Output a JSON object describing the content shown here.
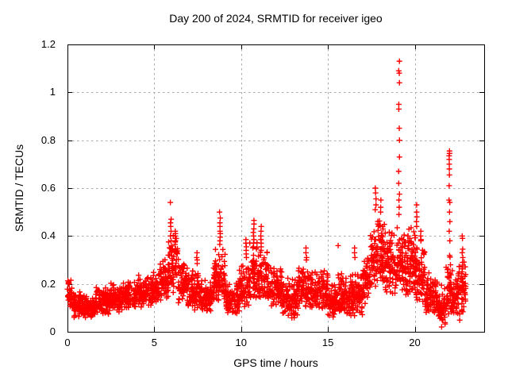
{
  "chart_data": {
    "type": "scatter",
    "title": "Day 200 of 2024, SRMTID for receiver igeo",
    "xlabel": "GPS time / hours",
    "ylabel": "SRMTID / TECUs",
    "xlim": [
      0,
      24
    ],
    "ylim": [
      0,
      1.2
    ],
    "xticks": [
      0,
      5,
      10,
      15,
      20
    ],
    "xtick_labels": [
      "0",
      "5",
      "10",
      "15",
      "20"
    ],
    "yticks": [
      0,
      0.2,
      0.4,
      0.6,
      0.8,
      1,
      1.2
    ],
    "ytick_labels": [
      "0",
      "0.2",
      "0.4",
      "0.6",
      "0.8",
      "1",
      "1.2"
    ],
    "grid": true,
    "legend": "none",
    "marker": {
      "shape": "plus",
      "color": "#ff0000",
      "size": 7
    },
    "colors": {
      "axis": "#000000",
      "grid": "#a8a8a8",
      "text": "#000000",
      "background": "#ffffff"
    },
    "seed": 20240200,
    "sample_interval_hours": 0.008333,
    "band_segments": [
      {
        "x0": 0.0,
        "x1": 0.3,
        "lo": 0.1,
        "hi": 0.23,
        "n": 36
      },
      {
        "x0": 0.3,
        "x1": 0.9,
        "lo": 0.06,
        "hi": 0.18,
        "n": 72
      },
      {
        "x0": 0.9,
        "x1": 1.6,
        "lo": 0.05,
        "hi": 0.16,
        "n": 84
      },
      {
        "x0": 1.6,
        "x1": 2.4,
        "lo": 0.07,
        "hi": 0.19,
        "n": 96
      },
      {
        "x0": 2.4,
        "x1": 3.2,
        "lo": 0.08,
        "hi": 0.21,
        "n": 96
      },
      {
        "x0": 3.2,
        "x1": 4.0,
        "lo": 0.09,
        "hi": 0.22,
        "n": 96
      },
      {
        "x0": 4.0,
        "x1": 4.7,
        "lo": 0.1,
        "hi": 0.24,
        "n": 84
      },
      {
        "x0": 4.7,
        "x1": 5.3,
        "lo": 0.11,
        "hi": 0.26,
        "n": 72
      },
      {
        "x0": 5.3,
        "x1": 5.8,
        "lo": 0.13,
        "hi": 0.32,
        "n": 60
      },
      {
        "x0": 5.8,
        "x1": 6.35,
        "lo": 0.16,
        "hi": 0.43,
        "n": 66
      },
      {
        "x0": 6.35,
        "x1": 6.9,
        "lo": 0.12,
        "hi": 0.33,
        "n": 64
      },
      {
        "x0": 6.9,
        "x1": 7.6,
        "lo": 0.09,
        "hi": 0.27,
        "n": 80
      },
      {
        "x0": 7.6,
        "x1": 8.4,
        "lo": 0.08,
        "hi": 0.22,
        "n": 92
      },
      {
        "x0": 8.4,
        "x1": 9.1,
        "lo": 0.11,
        "hi": 0.36,
        "n": 84
      },
      {
        "x0": 9.1,
        "x1": 9.9,
        "lo": 0.07,
        "hi": 0.21,
        "n": 92
      },
      {
        "x0": 9.9,
        "x1": 10.5,
        "lo": 0.1,
        "hi": 0.3,
        "n": 70
      },
      {
        "x0": 10.5,
        "x1": 11.05,
        "lo": 0.13,
        "hi": 0.38,
        "n": 66
      },
      {
        "x0": 11.05,
        "x1": 11.6,
        "lo": 0.13,
        "hi": 0.38,
        "n": 66
      },
      {
        "x0": 11.6,
        "x1": 12.4,
        "lo": 0.1,
        "hi": 0.28,
        "n": 92
      },
      {
        "x0": 12.4,
        "x1": 13.3,
        "lo": 0.05,
        "hi": 0.24,
        "n": 102
      },
      {
        "x0": 13.3,
        "x1": 14.2,
        "lo": 0.09,
        "hi": 0.3,
        "n": 102
      },
      {
        "x0": 14.2,
        "x1": 15.0,
        "lo": 0.09,
        "hi": 0.27,
        "n": 92
      },
      {
        "x0": 15.0,
        "x1": 15.5,
        "lo": 0.05,
        "hi": 0.21,
        "n": 58
      },
      {
        "x0": 15.5,
        "x1": 16.2,
        "lo": 0.07,
        "hi": 0.25,
        "n": 80
      },
      {
        "x0": 16.2,
        "x1": 17.0,
        "lo": 0.06,
        "hi": 0.27,
        "n": 92
      },
      {
        "x0": 17.0,
        "x1": 17.45,
        "lo": 0.11,
        "hi": 0.33,
        "n": 54
      },
      {
        "x0": 17.45,
        "x1": 18.3,
        "lo": 0.17,
        "hi": 0.5,
        "n": 112
      },
      {
        "x0": 18.3,
        "x1": 18.9,
        "lo": 0.15,
        "hi": 0.44,
        "n": 76
      },
      {
        "x0": 18.9,
        "x1": 19.35,
        "lo": 0.17,
        "hi": 0.46,
        "n": 60
      },
      {
        "x0": 19.35,
        "x1": 20.05,
        "lo": 0.15,
        "hi": 0.45,
        "n": 92
      },
      {
        "x0": 20.05,
        "x1": 20.6,
        "lo": 0.12,
        "hi": 0.4,
        "n": 66
      },
      {
        "x0": 20.6,
        "x1": 21.3,
        "lo": 0.06,
        "hi": 0.26,
        "n": 80
      },
      {
        "x0": 21.3,
        "x1": 21.8,
        "lo": 0.02,
        "hi": 0.2,
        "n": 56
      },
      {
        "x0": 21.8,
        "x1": 22.15,
        "lo": 0.06,
        "hi": 0.32,
        "n": 46
      },
      {
        "x0": 22.15,
        "x1": 22.6,
        "lo": 0.04,
        "hi": 0.28,
        "n": 52
      },
      {
        "x0": 22.6,
        "x1": 22.95,
        "lo": 0.08,
        "hi": 0.3,
        "n": 42
      }
    ],
    "spike_columns": [
      {
        "x": 5.95,
        "ys": [
          0.54,
          0.47,
          0.455,
          0.44,
          0.42,
          0.4,
          0.38
        ]
      },
      {
        "x": 6.2,
        "ys": [
          0.42,
          0.41,
          0.4,
          0.39,
          0.38,
          0.375,
          0.365
        ]
      },
      {
        "x": 7.45,
        "ys": [
          0.33,
          0.31,
          0.3,
          0.285
        ]
      },
      {
        "x": 8.78,
        "ys": [
          0.5,
          0.475,
          0.455,
          0.44,
          0.42,
          0.41,
          0.395,
          0.38,
          0.365
        ]
      },
      {
        "x": 10.3,
        "ys": [
          0.385,
          0.37,
          0.355,
          0.34,
          0.325,
          0.31
        ]
      },
      {
        "x": 10.72,
        "ys": [
          0.465,
          0.45,
          0.43,
          0.415,
          0.4,
          0.385,
          0.37,
          0.355
        ]
      },
      {
        "x": 11.15,
        "ys": [
          0.44,
          0.42,
          0.4,
          0.385,
          0.37,
          0.355,
          0.34
        ]
      },
      {
        "x": 13.75,
        "ys": [
          0.35,
          0.33,
          0.31,
          0.3
        ]
      },
      {
        "x": 15.6,
        "ys": [
          0.36
        ]
      },
      {
        "x": 16.55,
        "ys": [
          0.35,
          0.33,
          0.31
        ]
      },
      {
        "x": 17.75,
        "ys": [
          0.6,
          0.58,
          0.555,
          0.53,
          0.51
        ]
      },
      {
        "x": 18.05,
        "ys": [
          0.55,
          0.52,
          0.5
        ]
      },
      {
        "x": 19.1,
        "ys": [
          1.13,
          1.09,
          1.08,
          1.04,
          0.95,
          0.93,
          0.85,
          0.8,
          0.73,
          0.67,
          0.62,
          0.575,
          0.55,
          0.52,
          0.49
        ]
      },
      {
        "x": 19.6,
        "ys": [
          0.4,
          0.38
        ]
      },
      {
        "x": 20.1,
        "ys": [
          0.53,
          0.5,
          0.48,
          0.46,
          0.44
        ]
      },
      {
        "x": 20.35,
        "ys": [
          0.42,
          0.4,
          0.38
        ]
      },
      {
        "x": 22.0,
        "ys": [
          0.755,
          0.745,
          0.735,
          0.72,
          0.7,
          0.68,
          0.655,
          0.61,
          0.55,
          0.54,
          0.5,
          0.46,
          0.42,
          0.38
        ]
      },
      {
        "x": 22.75,
        "ys": [
          0.4,
          0.39,
          0.345,
          0.33,
          0.31,
          0.29,
          0.27,
          0.25,
          0.22
        ]
      }
    ]
  }
}
